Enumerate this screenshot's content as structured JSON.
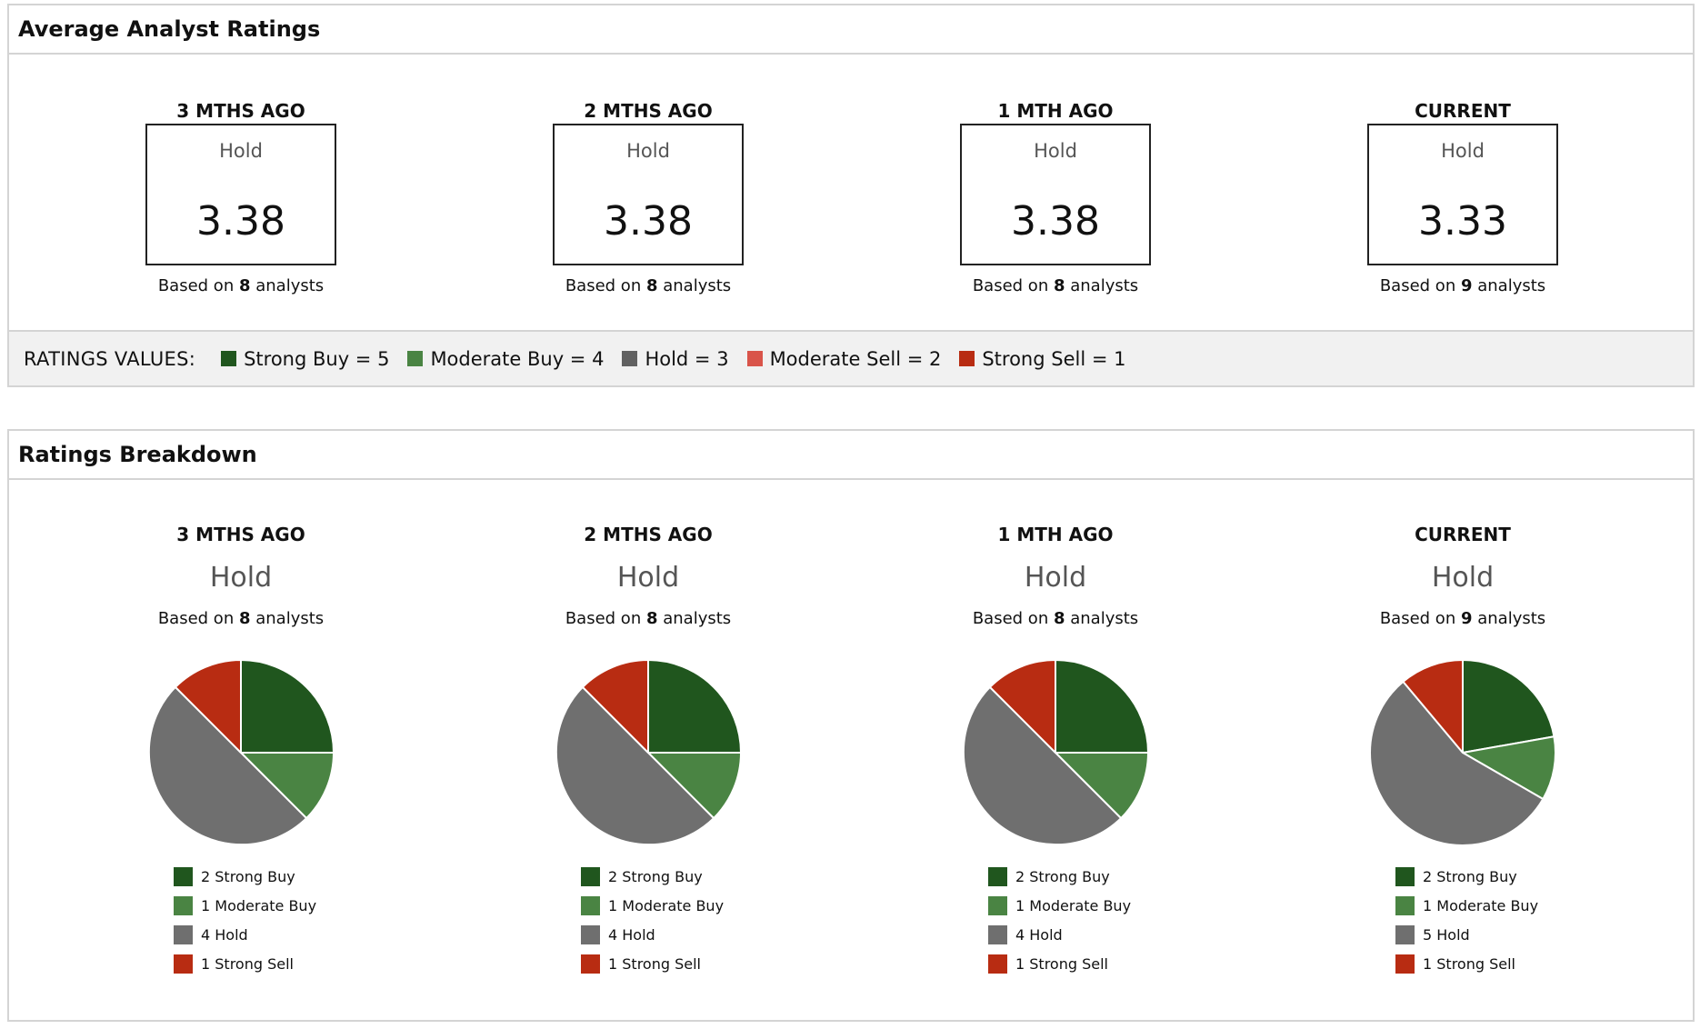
{
  "average_panel": {
    "title": "Average Analyst Ratings",
    "periods": [
      {
        "label": "3 MTHS AGO",
        "rating": "Hold",
        "score": "3.38",
        "analysts": "8"
      },
      {
        "label": "2 MTHS AGO",
        "rating": "Hold",
        "score": "3.38",
        "analysts": "8"
      },
      {
        "label": "1 MTH AGO",
        "rating": "Hold",
        "score": "3.38",
        "analysts": "8"
      },
      {
        "label": "CURRENT",
        "rating": "Hold",
        "score": "3.33",
        "analysts": "9"
      }
    ],
    "based_on_prefix": "Based on",
    "based_on_suffix": "analysts",
    "legend": {
      "title": "RATINGS VALUES:",
      "items": [
        {
          "label": "Strong Buy = 5",
          "color": "#20561e"
        },
        {
          "label": "Moderate Buy = 4",
          "color": "#4a8443"
        },
        {
          "label": "Hold = 3",
          "color": "#616161"
        },
        {
          "label": "Moderate Sell = 2",
          "color": "#d9544a"
        },
        {
          "label": "Strong Sell = 1",
          "color": "#b82c12"
        }
      ]
    }
  },
  "breakdown_panel": {
    "title": "Ratings Breakdown",
    "periods": [
      {
        "label": "3 MTHS AGO",
        "rating": "Hold",
        "analysts": "8",
        "legend": [
          "2 Strong Buy",
          "1 Moderate Buy",
          "4 Hold",
          "1 Strong Sell"
        ]
      },
      {
        "label": "2 MTHS AGO",
        "rating": "Hold",
        "analysts": "8",
        "legend": [
          "2 Strong Buy",
          "1 Moderate Buy",
          "4 Hold",
          "1 Strong Sell"
        ]
      },
      {
        "label": "1 MTH AGO",
        "rating": "Hold",
        "analysts": "8",
        "legend": [
          "2 Strong Buy",
          "1 Moderate Buy",
          "4 Hold",
          "1 Strong Sell"
        ]
      },
      {
        "label": "CURRENT",
        "rating": "Hold",
        "analysts": "9",
        "legend": [
          "2 Strong Buy",
          "1 Moderate Buy",
          "5 Hold",
          "1 Strong Sell"
        ]
      }
    ]
  },
  "chart_data": [
    {
      "type": "pie",
      "title": "3 MTHS AGO",
      "categories": [
        "Strong Buy",
        "Moderate Buy",
        "Hold",
        "Strong Sell"
      ],
      "values": [
        2,
        1,
        4,
        1
      ],
      "colors": [
        "#20561e",
        "#4a8443",
        "#6f6f6f",
        "#b82c12"
      ]
    },
    {
      "type": "pie",
      "title": "2 MTHS AGO",
      "categories": [
        "Strong Buy",
        "Moderate Buy",
        "Hold",
        "Strong Sell"
      ],
      "values": [
        2,
        1,
        4,
        1
      ],
      "colors": [
        "#20561e",
        "#4a8443",
        "#6f6f6f",
        "#b82c12"
      ]
    },
    {
      "type": "pie",
      "title": "1 MTH AGO",
      "categories": [
        "Strong Buy",
        "Moderate Buy",
        "Hold",
        "Strong Sell"
      ],
      "values": [
        2,
        1,
        4,
        1
      ],
      "colors": [
        "#20561e",
        "#4a8443",
        "#6f6f6f",
        "#b82c12"
      ]
    },
    {
      "type": "pie",
      "title": "CURRENT",
      "categories": [
        "Strong Buy",
        "Moderate Buy",
        "Hold",
        "Strong Sell"
      ],
      "values": [
        2,
        1,
        5,
        1
      ],
      "colors": [
        "#20561e",
        "#4a8443",
        "#6f6f6f",
        "#b82c12"
      ]
    }
  ]
}
